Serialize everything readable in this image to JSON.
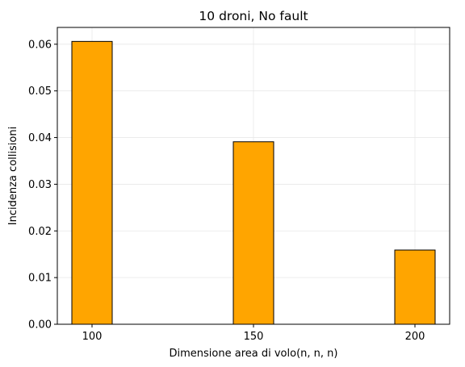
{
  "chart_data": {
    "type": "bar",
    "title": "10 droni, No fault",
    "xlabel": "Dimensione area di volo(n, n, n)",
    "ylabel": "Incidenza collisioni",
    "categories": [
      "100",
      "150",
      "200"
    ],
    "x": [
      100,
      150,
      200
    ],
    "values": [
      0.0606,
      0.0391,
      0.0159
    ],
    "xlim": [
      89.25,
      210.75
    ],
    "ylim": [
      0,
      0.0636
    ],
    "yticks": [
      "0.00",
      "0.01",
      "0.02",
      "0.03",
      "0.04",
      "0.05",
      "0.06"
    ],
    "bar_color": "#ffa500",
    "edge_color": "#000000",
    "grid": true,
    "legend": false
  }
}
